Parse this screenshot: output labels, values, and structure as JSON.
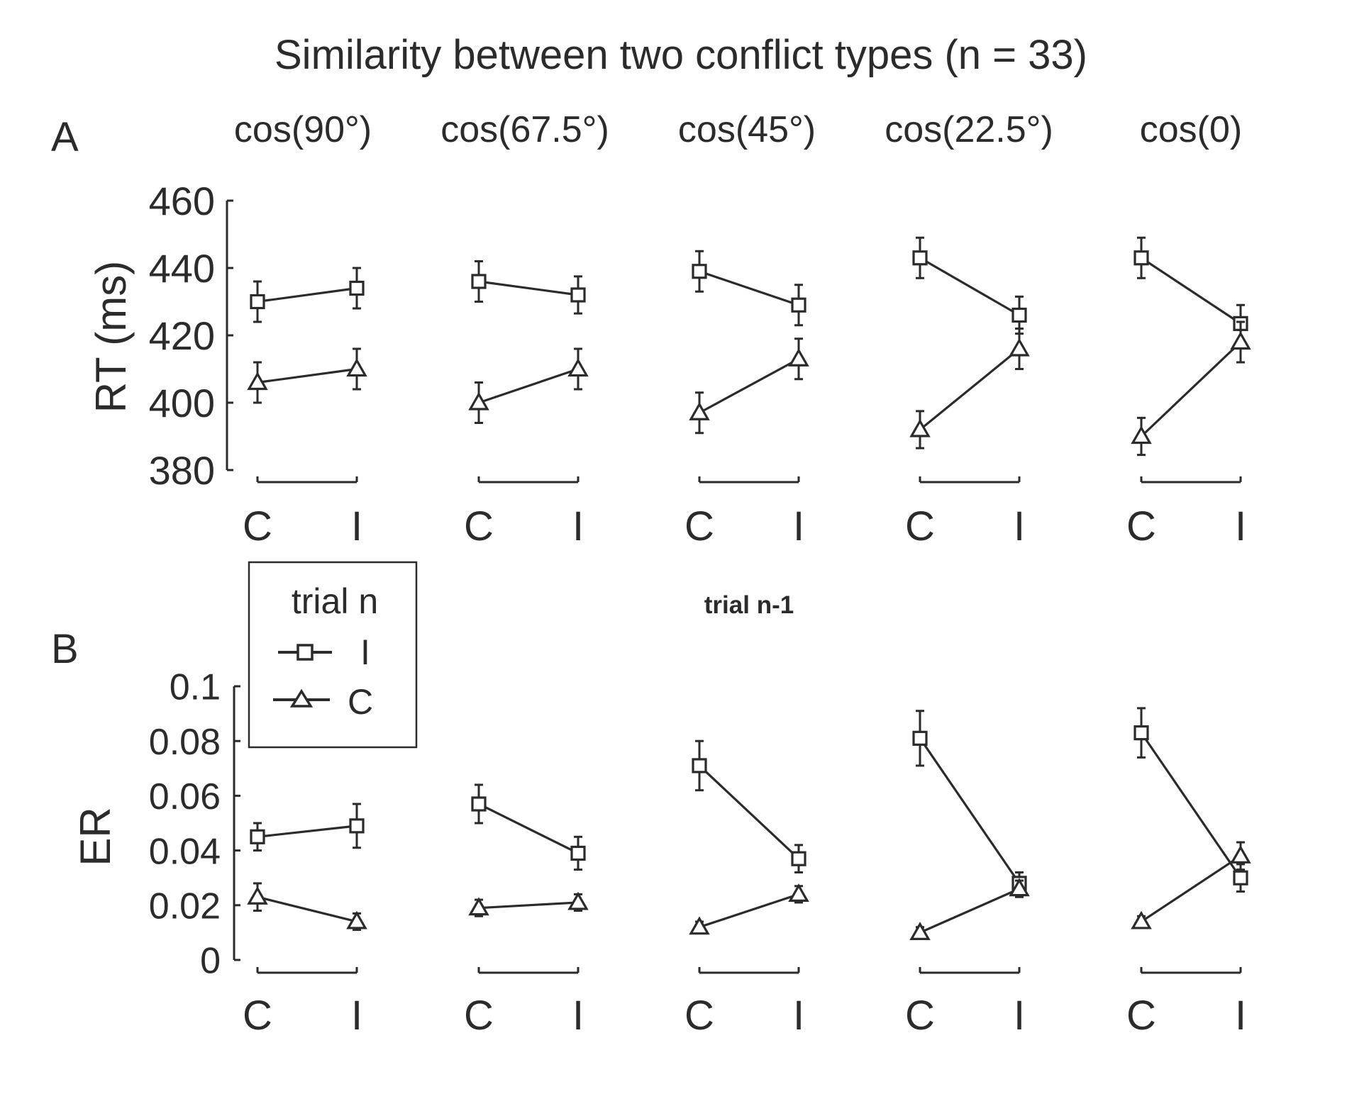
{
  "figure_title": "Similarity between two conflict types (n = 33)",
  "panel_labels": [
    "A",
    "B"
  ],
  "column_titles": [
    "cos(90°)",
    "cos(67.5°)",
    "cos(45°)",
    "cos(22.5°)",
    "cos(0)"
  ],
  "x_axis_common_label": "trial n-1",
  "legend": {
    "title": "trial n",
    "entries": [
      {
        "label": "I",
        "marker": "square"
      },
      {
        "label": "C",
        "marker": "triangle"
      }
    ]
  },
  "colors": {
    "ink": "#2b2b2b",
    "background": "#ffffff"
  },
  "chart_data": [
    {
      "type": "line",
      "panel": "A",
      "ylabel": "RT (ms)",
      "ylim": [
        380,
        460
      ],
      "yticks": [
        380,
        400,
        420,
        440,
        460
      ],
      "categories": [
        "C",
        "I"
      ],
      "subplots": [
        {
          "title": "cos(90°)",
          "series": [
            {
              "name": "I",
              "values": [
                430,
                434
              ],
              "errors": [
                6,
                6
              ]
            },
            {
              "name": "C",
              "values": [
                406,
                410
              ],
              "errors": [
                6,
                6
              ]
            }
          ]
        },
        {
          "title": "cos(67.5°)",
          "series": [
            {
              "name": "I",
              "values": [
                436,
                432
              ],
              "errors": [
                6,
                5.5
              ]
            },
            {
              "name": "C",
              "values": [
                400,
                410
              ],
              "errors": [
                6,
                6
              ]
            }
          ]
        },
        {
          "title": "cos(45°)",
          "series": [
            {
              "name": "I",
              "values": [
                439,
                429
              ],
              "errors": [
                6,
                6
              ]
            },
            {
              "name": "C",
              "values": [
                397,
                413
              ],
              "errors": [
                6,
                6
              ]
            }
          ]
        },
        {
          "title": "cos(22.5°)",
          "series": [
            {
              "name": "I",
              "values": [
                443,
                426
              ],
              "errors": [
                6,
                5.5
              ]
            },
            {
              "name": "C",
              "values": [
                392,
                416
              ],
              "errors": [
                5.5,
                6
              ]
            }
          ]
        },
        {
          "title": "cos(0)",
          "series": [
            {
              "name": "I",
              "values": [
                443,
                423.5
              ],
              "errors": [
                6,
                5.5
              ]
            },
            {
              "name": "C",
              "values": [
                390,
                418
              ],
              "errors": [
                5.5,
                6
              ]
            }
          ]
        }
      ]
    },
    {
      "type": "line",
      "panel": "B",
      "ylabel": "ER",
      "ylim": [
        0,
        0.1
      ],
      "yticks": [
        0,
        0.02,
        0.04,
        0.06,
        0.08,
        0.1
      ],
      "yticklabels": [
        "0",
        "0.02",
        "0.04",
        "0.06",
        "0.08",
        "0.1"
      ],
      "categories": [
        "C",
        "I"
      ],
      "subplots": [
        {
          "title": "cos(90°)",
          "series": [
            {
              "name": "I",
              "values": [
                0.045,
                0.049
              ],
              "errors": [
                0.005,
                0.008
              ]
            },
            {
              "name": "C",
              "values": [
                0.023,
                0.014
              ],
              "errors": [
                0.005,
                0.003
              ]
            }
          ]
        },
        {
          "title": "cos(67.5°)",
          "series": [
            {
              "name": "I",
              "values": [
                0.057,
                0.039
              ],
              "errors": [
                0.007,
                0.006
              ]
            },
            {
              "name": "C",
              "values": [
                0.019,
                0.021
              ],
              "errors": [
                0.003,
                0.003
              ]
            }
          ]
        },
        {
          "title": "cos(45°)",
          "series": [
            {
              "name": "I",
              "values": [
                0.071,
                0.037
              ],
              "errors": [
                0.009,
                0.005
              ]
            },
            {
              "name": "C",
              "values": [
                0.012,
                0.024
              ],
              "errors": [
                0.002,
                0.003
              ]
            }
          ]
        },
        {
          "title": "cos(22.5°)",
          "series": [
            {
              "name": "I",
              "values": [
                0.081,
                0.028
              ],
              "errors": [
                0.01,
                0.004
              ]
            },
            {
              "name": "C",
              "values": [
                0.01,
                0.026
              ],
              "errors": [
                0.002,
                0.003
              ]
            }
          ]
        },
        {
          "title": "cos(0)",
          "series": [
            {
              "name": "I",
              "values": [
                0.083,
                0.03
              ],
              "errors": [
                0.009,
                0.005
              ]
            },
            {
              "name": "C",
              "values": [
                0.014,
                0.038
              ],
              "errors": [
                0.002,
                0.005
              ]
            }
          ]
        }
      ]
    }
  ]
}
